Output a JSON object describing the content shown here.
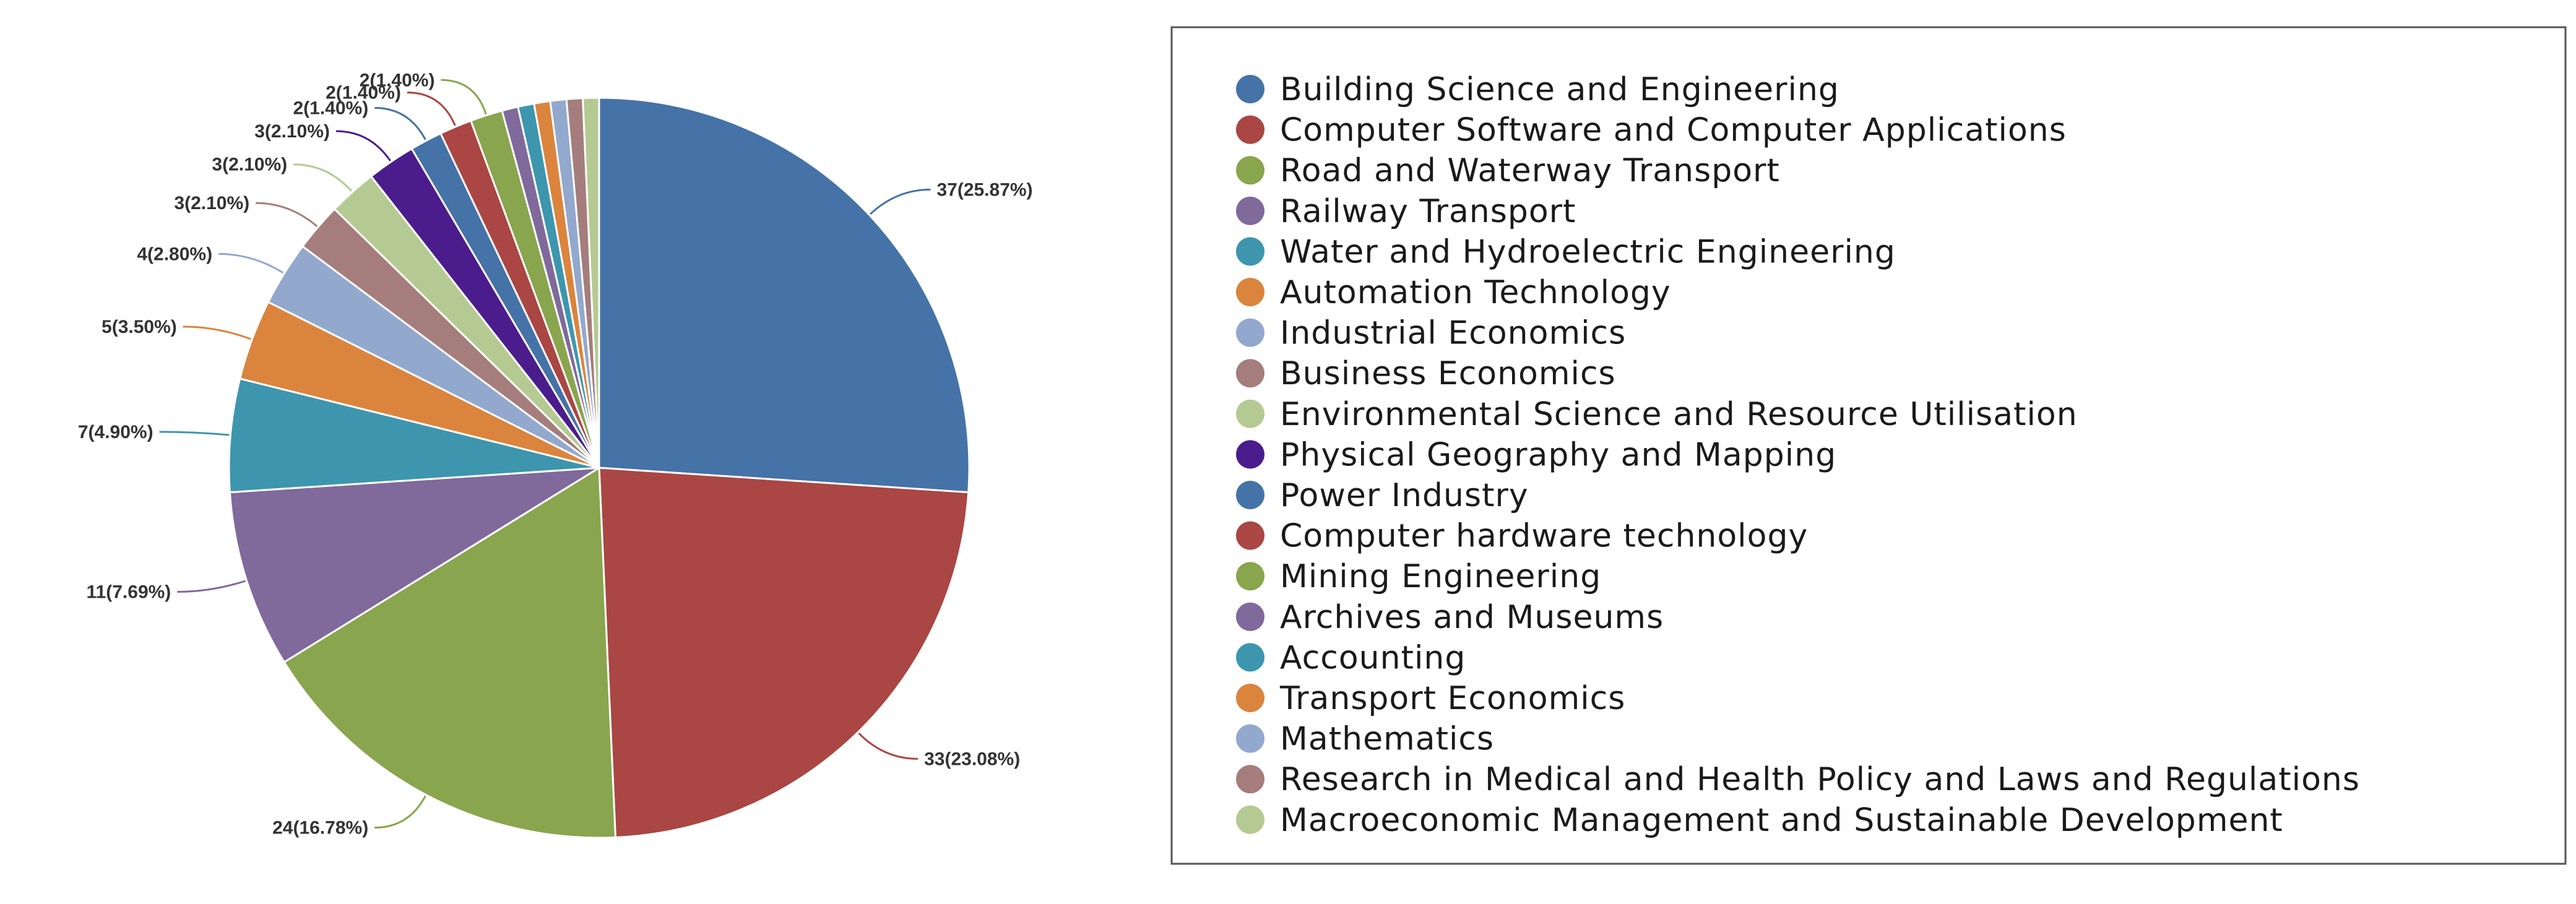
{
  "chart_data": {
    "type": "pie",
    "title": "",
    "legend_position": "right",
    "slices": [
      {
        "name": "Building Science and Engineering",
        "value": 37,
        "label": "37(25.87%)",
        "color": "#4572a7"
      },
      {
        "name": "Computer Software and Computer Applications",
        "value": 33,
        "label": "33(23.08%)",
        "color": "#aa4643"
      },
      {
        "name": "Road and Waterway Transport",
        "value": 24,
        "label": "24(16.78%)",
        "color": "#89a54e"
      },
      {
        "name": "Railway Transport",
        "value": 11,
        "label": "11(7.69%)",
        "color": "#80699b"
      },
      {
        "name": "Water and Hydroelectric Engineering",
        "value": 7,
        "label": "7(4.90%)",
        "color": "#3d96ae"
      },
      {
        "name": "Automation Technology",
        "value": 5,
        "label": "5(3.50%)",
        "color": "#db843d"
      },
      {
        "name": "Industrial Economics",
        "value": 4,
        "label": "4(2.80%)",
        "color": "#92a8cd"
      },
      {
        "name": "Business Economics",
        "value": 3,
        "label": "3(2.10%)",
        "color": "#a47d7c"
      },
      {
        "name": "Environmental Science and Resource Utilisation",
        "value": 3,
        "label": "3(2.10%)",
        "color": "#b5ca92"
      },
      {
        "name": "Physical Geography and Mapping",
        "value": 3,
        "label": "3(2.10%)",
        "color": "#4b1c8c"
      },
      {
        "name": "Power Industry",
        "value": 2,
        "label": "2(1.40%)",
        "color": "#4572a7"
      },
      {
        "name": "Computer hardware technology",
        "value": 2,
        "label": "2(1.40%)",
        "color": "#aa4643"
      },
      {
        "name": "Mining Engineering",
        "value": 2,
        "label": "2(1.40%)",
        "color": "#89a54e"
      },
      {
        "name": "Archives and Museums",
        "value": 1,
        "label": "",
        "color": "#80699b"
      },
      {
        "name": "Accounting",
        "value": 1,
        "label": "",
        "color": "#3d96ae"
      },
      {
        "name": "Transport Economics",
        "value": 1,
        "label": "",
        "color": "#db843d"
      },
      {
        "name": "Mathematics",
        "value": 1,
        "label": "",
        "color": "#92a8cd"
      },
      {
        "name": "Research in Medical and Health Policy and Laws and Regulations",
        "value": 1,
        "label": "",
        "color": "#a47d7c"
      },
      {
        "name": "Macroeconomic Management and Sustainable Development",
        "value": 1,
        "label": "",
        "color": "#b5ca92"
      }
    ]
  }
}
